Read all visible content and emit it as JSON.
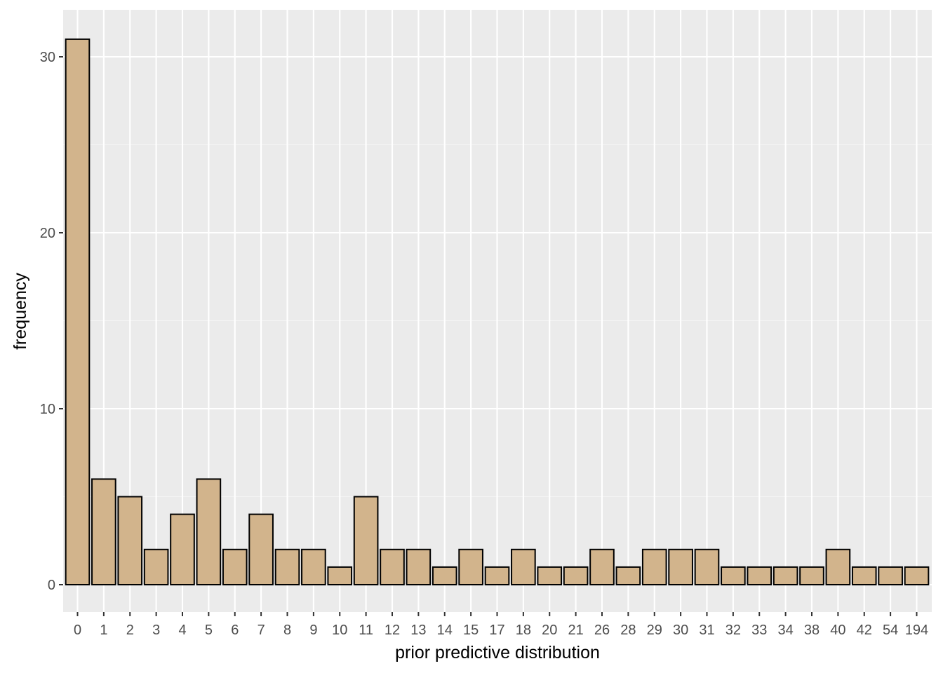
{
  "colors": {
    "panel_background": "#EBEBEB",
    "grid_major": "#FFFFFF",
    "grid_minor": "#F5F5F5",
    "bar_fill": "#D2B48C",
    "bar_outline": "#000000",
    "tick_text": "#4D4D4D"
  },
  "chart_data": {
    "type": "bar",
    "xlabel": "prior predictive distribution",
    "ylabel": "frequency",
    "ylim": [
      0,
      32
    ],
    "y_ticks": [
      0,
      10,
      20,
      30
    ],
    "grid": true,
    "legend": "none",
    "categories": [
      "0",
      "1",
      "2",
      "3",
      "4",
      "5",
      "6",
      "7",
      "8",
      "9",
      "10",
      "11",
      "12",
      "13",
      "14",
      "15",
      "17",
      "18",
      "20",
      "21",
      "26",
      "28",
      "29",
      "30",
      "31",
      "32",
      "33",
      "34",
      "38",
      "40",
      "42",
      "54",
      "194"
    ],
    "values": [
      31,
      6,
      5,
      2,
      4,
      6,
      2,
      4,
      2,
      2,
      1,
      5,
      2,
      2,
      1,
      2,
      1,
      2,
      1,
      1,
      2,
      1,
      2,
      2,
      2,
      1,
      1,
      1,
      1,
      2,
      1,
      1,
      1
    ]
  }
}
